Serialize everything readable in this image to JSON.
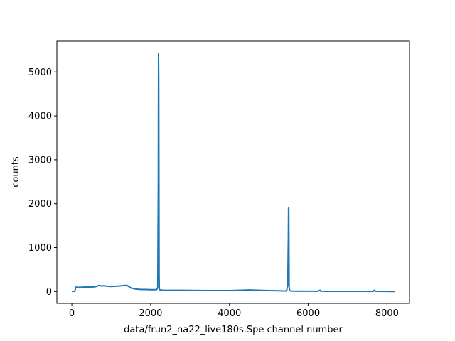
{
  "chart_data": {
    "type": "line",
    "xlabel": "data/frun2_na22_live180s.Spe channel number",
    "ylabel": "counts",
    "xlim": [
      -380,
      8570
    ],
    "ylim": [
      -270,
      5700
    ],
    "x_ticks": [
      0,
      2000,
      4000,
      6000,
      8000
    ],
    "y_ticks": [
      0,
      1000,
      2000,
      3000,
      4000,
      5000
    ],
    "grid": false,
    "line_color": "#1f77b4",
    "series": [
      {
        "x": [
          0,
          60,
          80,
          100,
          200,
          300,
          400,
          500,
          600,
          700,
          750,
          800,
          900,
          1000,
          1100,
          1200,
          1300,
          1400,
          1450,
          1500,
          1600,
          1700,
          1800,
          1900,
          2000,
          2100,
          2150,
          2180,
          2195,
          2200,
          2205,
          2210,
          2215,
          2220,
          2230,
          2245,
          2260,
          2300,
          2500,
          3000,
          3500,
          4000,
          4300,
          4500,
          4700,
          5000,
          5300,
          5450,
          5480,
          5495,
          5500,
          5505,
          5510,
          5515,
          5530,
          5560,
          5700,
          6000,
          6250,
          6300,
          6320,
          6500,
          7000,
          7500,
          7650,
          7680,
          7710,
          8000,
          8191
        ],
        "values": [
          0,
          5,
          15,
          100,
          95,
          100,
          105,
          100,
          110,
          140,
          125,
          130,
          120,
          115,
          120,
          125,
          135,
          140,
          110,
          80,
          60,
          50,
          45,
          45,
          42,
          42,
          44,
          80,
          2500,
          5420,
          4800,
          2500,
          400,
          60,
          40,
          38,
          36,
          30,
          28,
          25,
          22,
          22,
          30,
          35,
          30,
          22,
          15,
          12,
          150,
          1200,
          1900,
          1880,
          1000,
          100,
          20,
          12,
          10,
          8,
          8,
          30,
          8,
          6,
          5,
          5,
          5,
          30,
          5,
          3,
          0
        ]
      }
    ]
  }
}
